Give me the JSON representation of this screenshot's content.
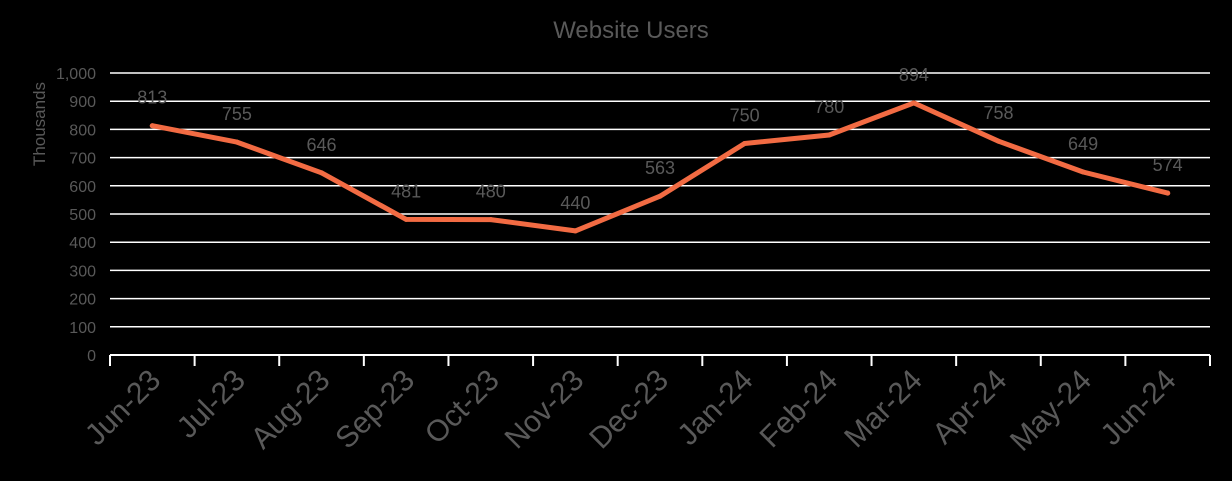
{
  "chart_data": {
    "type": "line",
    "title": "Website Users",
    "xlabel": "",
    "ylabel": "Thousands",
    "categories": [
      "Jun-23",
      "Jul-23",
      "Aug-23",
      "Sep-23",
      "Oct-23",
      "Nov-23",
      "Dec-23",
      "Jan-24",
      "Feb-24",
      "Mar-24",
      "Apr-24",
      "May-24",
      "Jun-24"
    ],
    "series": [
      {
        "values": [
          813,
          755,
          646,
          481,
          480,
          440,
          563,
          750,
          780,
          894,
          758,
          649,
          574
        ],
        "data_labels": [
          "813",
          "755",
          "646",
          "481",
          "480",
          "440",
          "563",
          "750",
          "780",
          "894",
          "758",
          "649",
          "574"
        ]
      }
    ],
    "ylim": [
      0,
      1000
    ],
    "y_ticks": [
      0,
      100,
      200,
      300,
      400,
      500,
      600,
      700,
      800,
      900,
      1000
    ],
    "y_tick_labels": [
      "0",
      "100",
      "200",
      "300",
      "400",
      "500",
      "600",
      "700",
      "800",
      "900",
      "1,000"
    ],
    "grid": true,
    "legend": "none",
    "colors": {
      "background": "#000000",
      "line": "#F26B43",
      "grid": "#FFFFFF",
      "text": "#595959"
    }
  }
}
